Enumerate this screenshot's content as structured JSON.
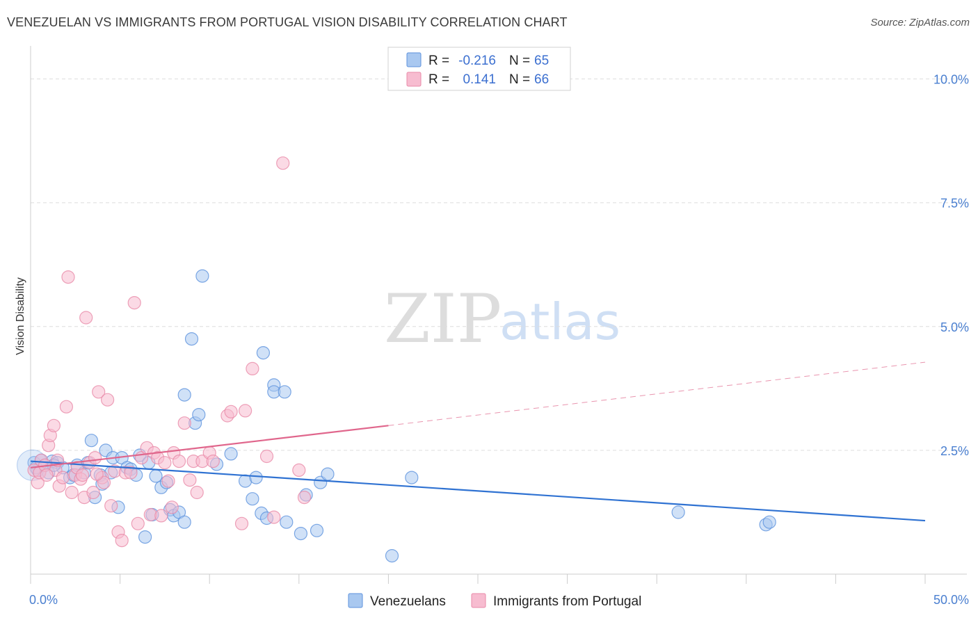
{
  "title": "VENEZUELAN VS IMMIGRANTS FROM PORTUGAL VISION DISABILITY CORRELATION CHART",
  "source": "Source: ZipAtlas.com",
  "watermark": {
    "zip": "ZIP",
    "atlas": "atlas"
  },
  "colors": {
    "blue_fill": "#a9c8f0",
    "blue_stroke": "#5d92dd",
    "blue_line": "#2f72d2",
    "pink_fill": "#f7bcd0",
    "pink_stroke": "#e88aa8",
    "pink_line": "#e0668c",
    "grid": "#dddddd",
    "axis_text": "#4a7fd0"
  },
  "legend": {
    "rows": [
      {
        "r_label": "R =",
        "r_value": "-0.216",
        "n_label": "N =",
        "n_value": "65"
      },
      {
        "r_label": "R =",
        "r_value": "0.141",
        "n_label": "N =",
        "n_value": "66"
      }
    ]
  },
  "bottom_legend": [
    "Venezuelans",
    "Immigrants from Portugal"
  ],
  "chart_data": {
    "type": "scatter",
    "title": "VENEZUELAN VS IMMIGRANTS FROM PORTUGAL VISION DISABILITY CORRELATION CHART",
    "xlabel": "",
    "ylabel": "Vision Disability",
    "xlim": [
      0,
      50
    ],
    "ylim": [
      0,
      10.5
    ],
    "x_tick_labels": [
      "0.0%",
      "50.0%"
    ],
    "y_ticks": [
      2.5,
      5.0,
      7.5,
      10.0
    ],
    "y_tick_labels": [
      "2.5%",
      "5.0%",
      "7.5%",
      "10.0%"
    ],
    "grid": true,
    "series": [
      {
        "name": "Venezuelans",
        "R": -0.216,
        "N": 65,
        "trend": {
          "x0": 0,
          "y0": 2.28,
          "x1": 50,
          "y1": 1.08
        },
        "points": [
          [
            0.2,
            2.25
          ],
          [
            0.4,
            2.1
          ],
          [
            0.6,
            2.3
          ],
          [
            0.8,
            2.2
          ],
          [
            1.0,
            2.05
          ],
          [
            1.2,
            2.28
          ],
          [
            1.5,
            2.25
          ],
          [
            1.8,
            2.15
          ],
          [
            2.2,
            1.95
          ],
          [
            2.4,
            2.0
          ],
          [
            2.6,
            2.2
          ],
          [
            3.0,
            2.05
          ],
          [
            3.2,
            2.25
          ],
          [
            3.4,
            2.7
          ],
          [
            3.6,
            1.55
          ],
          [
            3.9,
            2.0
          ],
          [
            4.0,
            1.82
          ],
          [
            4.2,
            2.5
          ],
          [
            4.5,
            2.05
          ],
          [
            4.6,
            2.35
          ],
          [
            4.9,
            1.35
          ],
          [
            5.1,
            2.35
          ],
          [
            5.4,
            2.15
          ],
          [
            5.6,
            2.12
          ],
          [
            5.9,
            2.0
          ],
          [
            6.1,
            2.4
          ],
          [
            6.4,
            0.75
          ],
          [
            6.6,
            2.25
          ],
          [
            6.8,
            1.2
          ],
          [
            7.0,
            1.98
          ],
          [
            7.3,
            1.75
          ],
          [
            7.6,
            1.85
          ],
          [
            7.8,
            1.3
          ],
          [
            8.0,
            1.18
          ],
          [
            8.3,
            1.25
          ],
          [
            8.6,
            1.05
          ],
          [
            9.2,
            3.05
          ],
          [
            8.6,
            3.62
          ],
          [
            9.0,
            4.75
          ],
          [
            9.4,
            3.22
          ],
          [
            9.6,
            6.02
          ],
          [
            10.4,
            2.22
          ],
          [
            11.2,
            2.43
          ],
          [
            12.0,
            1.88
          ],
          [
            12.6,
            1.95
          ],
          [
            12.4,
            1.52
          ],
          [
            12.9,
            1.23
          ],
          [
            13.2,
            1.13
          ],
          [
            13.6,
            3.82
          ],
          [
            14.3,
            1.05
          ],
          [
            13.0,
            4.47
          ],
          [
            13.6,
            3.68
          ],
          [
            14.2,
            3.68
          ],
          [
            15.4,
            1.6
          ],
          [
            16.2,
            1.85
          ],
          [
            16.6,
            2.02
          ],
          [
            16.0,
            0.88
          ],
          [
            15.1,
            0.82
          ],
          [
            20.2,
            0.37
          ],
          [
            21.3,
            1.95
          ],
          [
            36.2,
            1.25
          ],
          [
            41.1,
            1.0
          ],
          [
            41.3,
            1.05
          ],
          [
            0.3,
            2.15
          ],
          [
            1.3,
            2.2
          ]
        ]
      },
      {
        "name": "Immigrants from Portugal",
        "R": 0.141,
        "N": 66,
        "trend": {
          "x0": 0,
          "y0": 2.15,
          "x1": 20,
          "y1": 3.0
        },
        "trend_extension": {
          "x0": 20,
          "y0": 3.0,
          "x1": 50,
          "y1": 4.28
        },
        "points": [
          [
            0.2,
            2.1
          ],
          [
            0.4,
            1.85
          ],
          [
            0.5,
            2.05
          ],
          [
            0.6,
            2.3
          ],
          [
            0.8,
            2.2
          ],
          [
            1.0,
            2.6
          ],
          [
            1.1,
            2.8
          ],
          [
            1.3,
            3.0
          ],
          [
            1.4,
            2.1
          ],
          [
            1.6,
            1.78
          ],
          [
            1.8,
            1.95
          ],
          [
            2.0,
            3.38
          ],
          [
            2.1,
            6.0
          ],
          [
            2.3,
            1.65
          ],
          [
            2.5,
            2.0
          ],
          [
            2.6,
            2.15
          ],
          [
            2.8,
            1.92
          ],
          [
            3.0,
            1.55
          ],
          [
            3.1,
            5.18
          ],
          [
            3.3,
            2.25
          ],
          [
            3.5,
            1.65
          ],
          [
            3.6,
            2.35
          ],
          [
            3.8,
            3.68
          ],
          [
            4.0,
            1.95
          ],
          [
            4.1,
            1.85
          ],
          [
            4.3,
            3.52
          ],
          [
            4.5,
            1.38
          ],
          [
            4.7,
            2.08
          ],
          [
            4.9,
            0.85
          ],
          [
            5.1,
            0.68
          ],
          [
            5.3,
            2.05
          ],
          [
            5.6,
            2.05
          ],
          [
            5.8,
            5.48
          ],
          [
            6.0,
            1.02
          ],
          [
            6.2,
            2.35
          ],
          [
            6.5,
            2.55
          ],
          [
            6.7,
            1.2
          ],
          [
            6.9,
            2.45
          ],
          [
            7.1,
            2.35
          ],
          [
            7.3,
            1.18
          ],
          [
            7.5,
            2.25
          ],
          [
            7.7,
            1.88
          ],
          [
            7.9,
            1.35
          ],
          [
            8.0,
            2.45
          ],
          [
            8.3,
            2.28
          ],
          [
            8.6,
            3.05
          ],
          [
            8.9,
            1.9
          ],
          [
            9.1,
            2.28
          ],
          [
            9.3,
            1.65
          ],
          [
            9.6,
            2.28
          ],
          [
            10.0,
            2.45
          ],
          [
            10.2,
            2.28
          ],
          [
            11.0,
            3.2
          ],
          [
            11.2,
            3.28
          ],
          [
            11.8,
            1.02
          ],
          [
            12.0,
            3.3
          ],
          [
            12.4,
            4.15
          ],
          [
            13.2,
            2.38
          ],
          [
            13.6,
            1.15
          ],
          [
            14.1,
            8.3
          ],
          [
            15.3,
            1.55
          ],
          [
            15.0,
            2.1
          ],
          [
            3.7,
            2.02
          ],
          [
            2.9,
            2.0
          ],
          [
            1.5,
            2.3
          ],
          [
            0.9,
            2.0
          ]
        ]
      }
    ]
  }
}
